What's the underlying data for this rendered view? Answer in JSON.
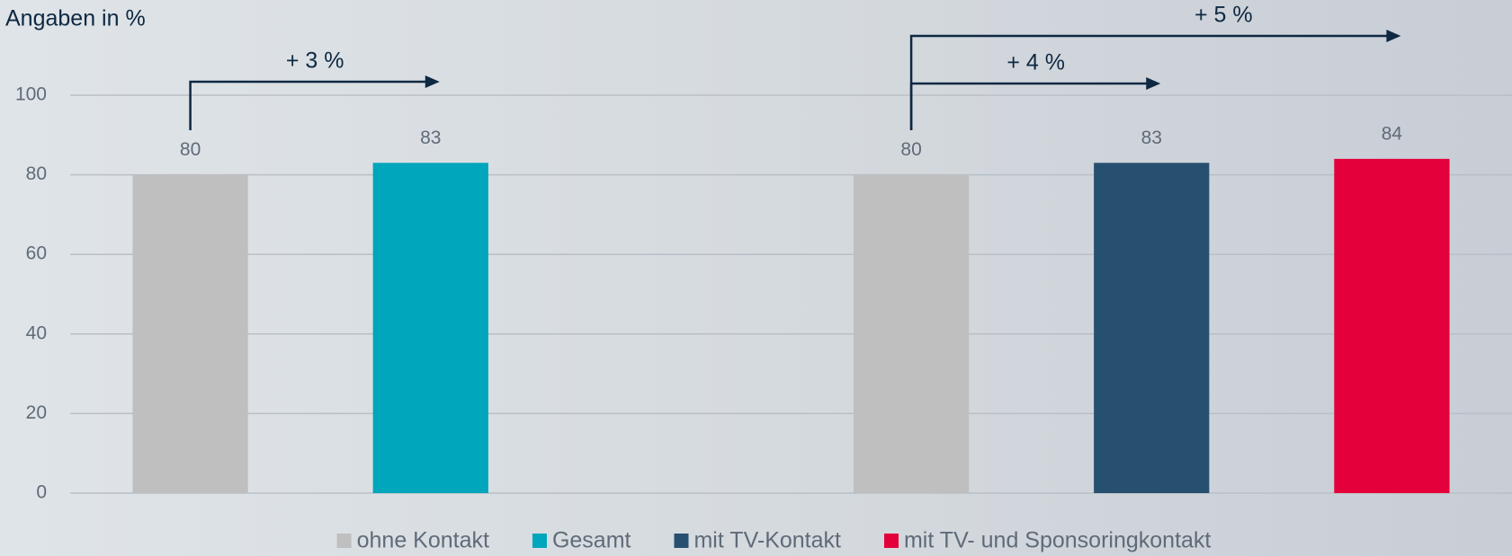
{
  "chart_data": {
    "type": "bar",
    "title": "Angaben in %",
    "categories": [
      null,
      null,
      null,
      null,
      null,
      null
    ],
    "series": [
      {
        "name": "ohne Kontakt",
        "color": "#bfbfbf",
        "values": [
          80,
          null,
          null,
          80,
          null,
          null
        ]
      },
      {
        "name": "Gesamt",
        "color": "#00a6bb",
        "values": [
          null,
          83,
          null,
          null,
          null,
          null
        ]
      },
      {
        "name": "mit TV-Kontakt",
        "color": "#274f70",
        "values": [
          null,
          null,
          null,
          null,
          83,
          null
        ]
      },
      {
        "name": "mit TV- und Sponsoringkontakt",
        "color": "#e4003b",
        "values": [
          null,
          null,
          null,
          null,
          null,
          84
        ]
      }
    ],
    "annotations": [
      "+ 3 %",
      "+ 4 %",
      "+ 5 %"
    ],
    "ylim": [
      0,
      100
    ],
    "yticks": [
      0,
      20,
      40,
      60,
      80,
      100
    ],
    "grid": true,
    "legend": "bottom"
  }
}
